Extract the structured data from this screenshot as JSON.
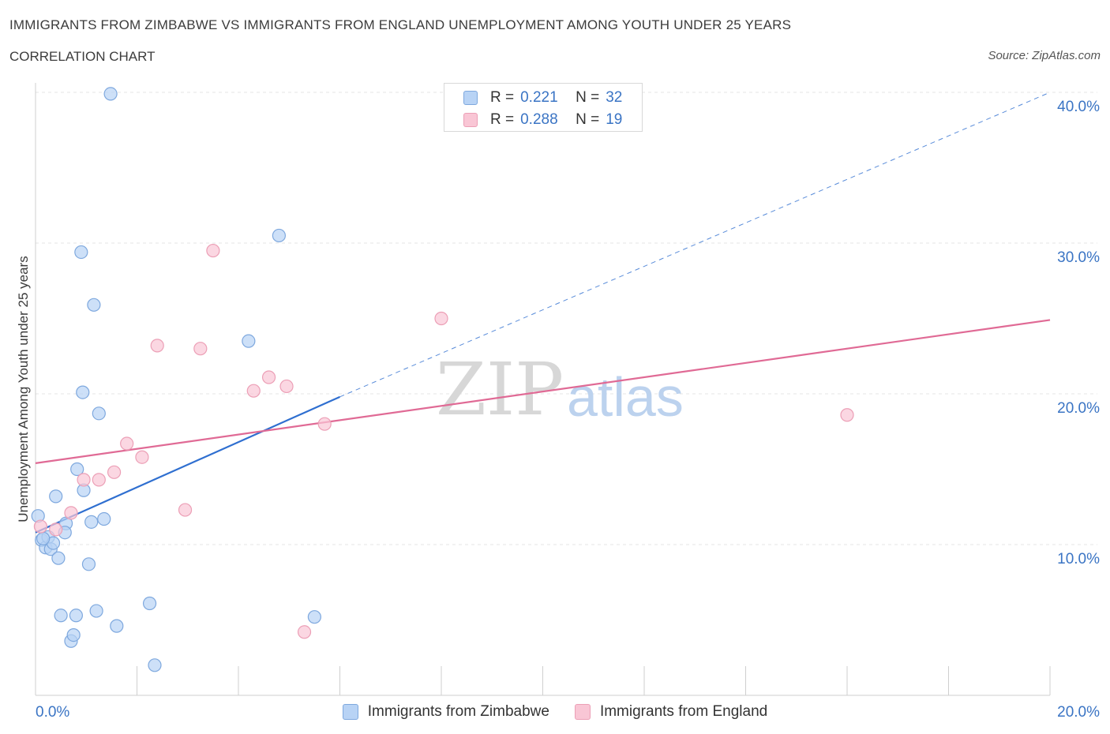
{
  "header": {
    "title": "IMMIGRANTS FROM ZIMBABWE VS IMMIGRANTS FROM ENGLAND UNEMPLOYMENT AMONG YOUTH UNDER 25 YEARS",
    "subtitle": "CORRELATION CHART",
    "source": "Source: ZipAtlas.com"
  },
  "watermark": {
    "zip": "ZIP",
    "atlas": "atlas"
  },
  "colors": {
    "blue_fill": "#b8d3f5",
    "blue_stroke": "#7ea8de",
    "blue_line": "#2f6fd0",
    "pink_fill": "#f9c6d5",
    "pink_stroke": "#ec9fb6",
    "pink_line": "#e06a95",
    "tick_text": "#3a74c4"
  },
  "legend_top": {
    "rows": [
      {
        "r_label": "R =",
        "r_value": "0.221",
        "n_label": "N =",
        "n_value": "32"
      },
      {
        "r_label": "R =",
        "r_value": "0.288",
        "n_label": "N =",
        "n_value": "19"
      }
    ]
  },
  "chart_data": {
    "type": "scatter",
    "title": "IMMIGRANTS FROM ZIMBABWE VS IMMIGRANTS FROM ENGLAND UNEMPLOYMENT AMONG YOUTH UNDER 25 YEARS",
    "xlabel": "",
    "ylabel": "Unemployment Among Youth under 25 years",
    "xlim": [
      0,
      20
    ],
    "ylim": [
      0,
      40
    ],
    "x_tick_labels": [
      {
        "value": 0,
        "label": "0.0%"
      },
      {
        "value": 20,
        "label": "20.0%"
      }
    ],
    "y_tick_labels": [
      {
        "value": 10,
        "label": "10.0%"
      },
      {
        "value": 20,
        "label": "20.0%"
      },
      {
        "value": 30,
        "label": "30.0%"
      },
      {
        "value": 40,
        "label": "40.0%"
      }
    ],
    "series": [
      {
        "name": "Immigrants from Zimbabwe",
        "color": "blue",
        "R": 0.221,
        "N": 32,
        "points": [
          [
            0.05,
            11.9
          ],
          [
            0.12,
            10.3
          ],
          [
            0.2,
            9.8
          ],
          [
            0.25,
            10.5
          ],
          [
            0.3,
            9.7
          ],
          [
            0.35,
            10.1
          ],
          [
            0.4,
            13.2
          ],
          [
            0.45,
            9.1
          ],
          [
            0.5,
            5.3
          ],
          [
            0.6,
            11.4
          ],
          [
            0.58,
            10.8
          ],
          [
            0.7,
            3.6
          ],
          [
            0.75,
            4.0
          ],
          [
            0.8,
            5.3
          ],
          [
            0.82,
            15.0
          ],
          [
            0.9,
            29.4
          ],
          [
            0.93,
            20.1
          ],
          [
            0.95,
            13.6
          ],
          [
            1.05,
            8.7
          ],
          [
            1.1,
            11.5
          ],
          [
            1.15,
            25.9
          ],
          [
            1.2,
            5.6
          ],
          [
            1.25,
            18.7
          ],
          [
            1.35,
            11.7
          ],
          [
            1.48,
            39.9
          ],
          [
            1.6,
            4.6
          ],
          [
            2.25,
            6.1
          ],
          [
            2.35,
            2.0
          ],
          [
            4.2,
            23.5
          ],
          [
            4.8,
            30.5
          ],
          [
            5.5,
            5.2
          ],
          [
            0.15,
            10.4
          ]
        ],
        "trend": {
          "x": [
            0,
            6
          ],
          "y": [
            10.8,
            19.8
          ],
          "extended_to": [
            20,
            40
          ]
        }
      },
      {
        "name": "Immigrants from England",
        "color": "pink",
        "R": 0.288,
        "N": 19,
        "points": [
          [
            0.1,
            11.2
          ],
          [
            0.4,
            11.0
          ],
          [
            0.7,
            12.1
          ],
          [
            0.95,
            14.3
          ],
          [
            1.25,
            14.3
          ],
          [
            1.55,
            14.8
          ],
          [
            1.8,
            16.7
          ],
          [
            2.1,
            15.8
          ],
          [
            2.4,
            23.2
          ],
          [
            2.95,
            12.3
          ],
          [
            3.25,
            23.0
          ],
          [
            3.5,
            29.5
          ],
          [
            4.3,
            20.2
          ],
          [
            4.6,
            21.1
          ],
          [
            4.95,
            20.5
          ],
          [
            5.3,
            4.2
          ],
          [
            5.7,
            18.0
          ],
          [
            8.0,
            25.0
          ],
          [
            16.0,
            18.6
          ]
        ],
        "trend": {
          "x": [
            0,
            20
          ],
          "y": [
            15.4,
            24.9
          ]
        }
      }
    ],
    "legend": [
      "Immigrants from Zimbabwe",
      "Immigrants from England"
    ],
    "grid": true
  }
}
